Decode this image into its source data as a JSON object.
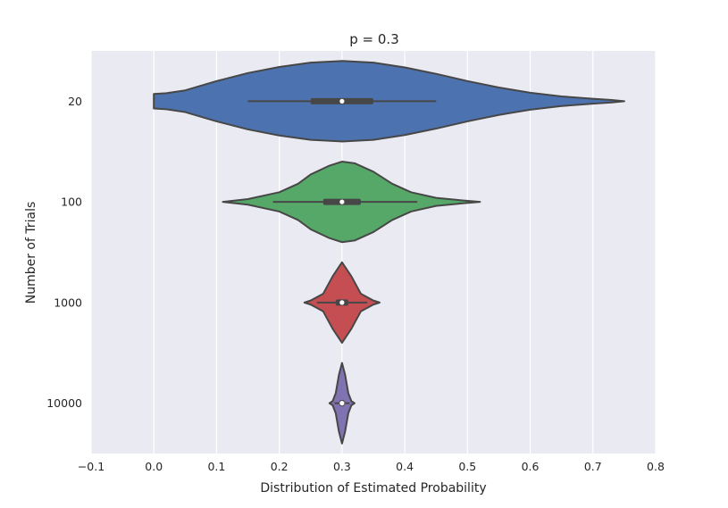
{
  "chart_data": {
    "type": "violin",
    "orientation": "horizontal",
    "title": "p = 0.3",
    "xlabel": "Distribution of Estimated Probability",
    "ylabel": "Number of Trials",
    "xlim": [
      -0.1,
      0.8
    ],
    "xticks": [
      -0.1,
      0.0,
      0.1,
      0.2,
      0.3,
      0.4,
      0.5,
      0.6,
      0.7,
      0.8
    ],
    "xtick_labels": [
      "−0.1",
      "0.0",
      "0.1",
      "0.2",
      "0.3",
      "0.4",
      "0.5",
      "0.6",
      "0.7",
      "0.8"
    ],
    "grid": true,
    "colors": {
      "background": "#eaeaf2",
      "grid": "#ffffff",
      "outline": "#474747"
    },
    "categories": [
      "20",
      "100",
      "1000",
      "10000"
    ],
    "series": [
      {
        "category": "20",
        "color": "#4c72b0",
        "min": 0.0,
        "max": 0.75,
        "median": 0.3,
        "q1": 0.25,
        "q3": 0.35,
        "whisker_low": 0.15,
        "whisker_high": 0.45,
        "density": [
          [
            0.0,
            0.18
          ],
          [
            0.02,
            0.2
          ],
          [
            0.05,
            0.27
          ],
          [
            0.1,
            0.5
          ],
          [
            0.15,
            0.7
          ],
          [
            0.2,
            0.85
          ],
          [
            0.25,
            0.96
          ],
          [
            0.3,
            1.0
          ],
          [
            0.35,
            0.96
          ],
          [
            0.4,
            0.84
          ],
          [
            0.45,
            0.68
          ],
          [
            0.5,
            0.5
          ],
          [
            0.55,
            0.34
          ],
          [
            0.6,
            0.21
          ],
          [
            0.65,
            0.12
          ],
          [
            0.7,
            0.06
          ],
          [
            0.73,
            0.03
          ],
          [
            0.75,
            0.0
          ]
        ]
      },
      {
        "category": "100",
        "color": "#55a868",
        "min": 0.11,
        "max": 0.52,
        "median": 0.3,
        "q1": 0.27,
        "q3": 0.33,
        "whisker_low": 0.19,
        "whisker_high": 0.42,
        "density": [
          [
            0.11,
            0.0
          ],
          [
            0.15,
            0.07
          ],
          [
            0.2,
            0.24
          ],
          [
            0.23,
            0.45
          ],
          [
            0.25,
            0.68
          ],
          [
            0.28,
            0.9
          ],
          [
            0.3,
            1.0
          ],
          [
            0.32,
            0.96
          ],
          [
            0.35,
            0.75
          ],
          [
            0.38,
            0.45
          ],
          [
            0.41,
            0.24
          ],
          [
            0.45,
            0.1
          ],
          [
            0.49,
            0.04
          ],
          [
            0.52,
            0.0
          ]
        ]
      },
      {
        "category": "1000",
        "color": "#c44e52",
        "min": 0.24,
        "max": 0.36,
        "median": 0.3,
        "q1": 0.29,
        "q3": 0.31,
        "whisker_low": 0.26,
        "whisker_high": 0.34,
        "density": [
          [
            0.24,
            0.0
          ],
          [
            0.25,
            0.05
          ],
          [
            0.27,
            0.22
          ],
          [
            0.285,
            0.65
          ],
          [
            0.3,
            1.0
          ],
          [
            0.315,
            0.65
          ],
          [
            0.33,
            0.22
          ],
          [
            0.35,
            0.05
          ],
          [
            0.36,
            0.0
          ]
        ]
      },
      {
        "category": "10000",
        "color": "#8172b2",
        "min": 0.28,
        "max": 0.32,
        "median": 0.3,
        "q1": 0.296,
        "q3": 0.304,
        "whisker_low": 0.288,
        "whisker_high": 0.312,
        "density": [
          [
            0.28,
            0.0
          ],
          [
            0.285,
            0.05
          ],
          [
            0.29,
            0.25
          ],
          [
            0.295,
            0.7
          ],
          [
            0.3,
            1.0
          ],
          [
            0.305,
            0.7
          ],
          [
            0.31,
            0.25
          ],
          [
            0.315,
            0.05
          ],
          [
            0.32,
            0.0
          ]
        ]
      }
    ]
  }
}
